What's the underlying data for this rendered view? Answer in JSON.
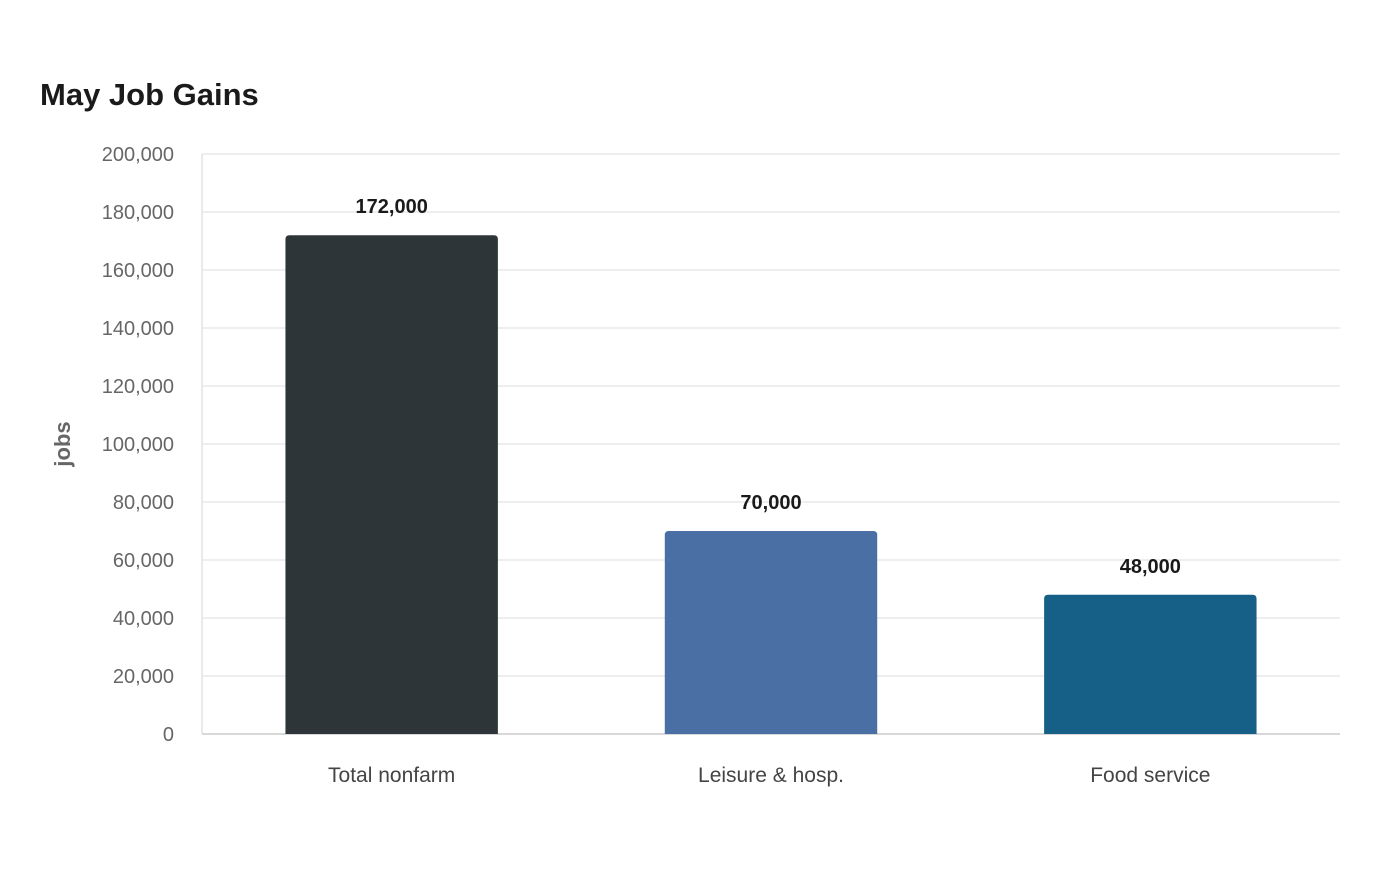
{
  "chart_data": {
    "type": "bar",
    "title": "May Job Gains",
    "xlabel": "",
    "ylabel": "jobs",
    "categories": [
      "Total nonfarm",
      "Leisure & hosp.",
      "Food service"
    ],
    "values": [
      172000,
      70000,
      48000
    ],
    "value_labels": [
      "172,000",
      "70,000",
      "48,000"
    ],
    "colors": [
      "#2e3538",
      "#4a6fa5",
      "#166088"
    ],
    "ylim": [
      0,
      200000
    ],
    "yticks": [
      0,
      20000,
      40000,
      60000,
      80000,
      100000,
      120000,
      140000,
      160000,
      180000,
      200000
    ],
    "ytick_labels": [
      "0",
      "20,000",
      "40,000",
      "60,000",
      "80,000",
      "100,000",
      "120,000",
      "140,000",
      "160,000",
      "180,000",
      "200,000"
    ],
    "grid": true,
    "legend": "none"
  }
}
